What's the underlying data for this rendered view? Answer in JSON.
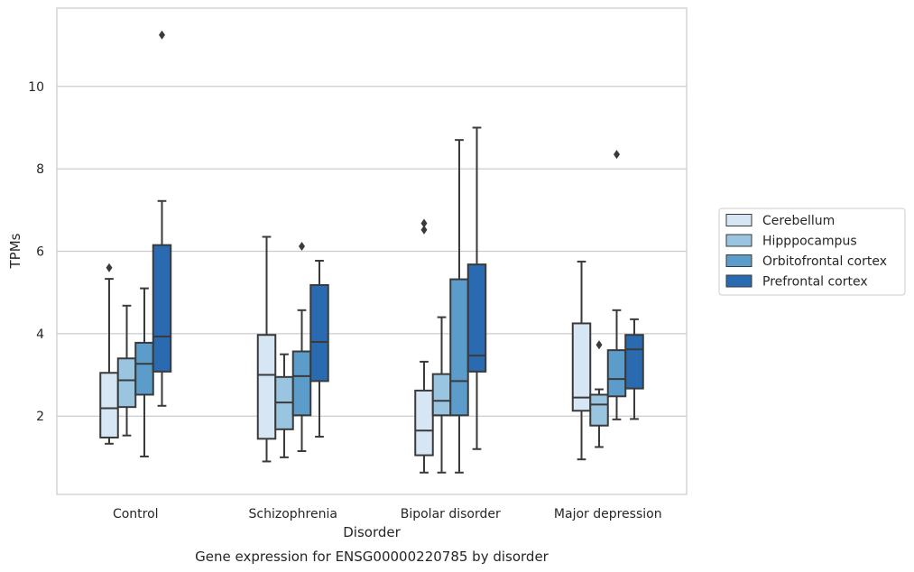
{
  "chart_data": {
    "type": "boxplot",
    "title": "Gene expression for ENSG00000220785 by disorder",
    "xlabel": "Disorder",
    "ylabel": "TPMs",
    "ylim": [
      0.1,
      11.9
    ],
    "yticks": [
      2,
      4,
      6,
      8,
      10
    ],
    "categories": [
      "Control",
      "Schizophrenia",
      "Bipolar disorder",
      "Major depression"
    ],
    "grid": "horizontal",
    "legend_position": "right",
    "series": [
      {
        "name": "Cerebellum",
        "color": "#d6e6f4",
        "boxes": [
          {
            "whisker_low": 1.33,
            "q1": 1.48,
            "median": 2.19,
            "q3": 3.05,
            "whisker_high": 5.33,
            "outliers": [
              5.6
            ]
          },
          {
            "whisker_low": 0.9,
            "q1": 1.45,
            "median": 3.0,
            "q3": 3.97,
            "whisker_high": 6.35,
            "outliers": []
          },
          {
            "whisker_low": 0.63,
            "q1": 1.05,
            "median": 1.65,
            "q3": 2.62,
            "whisker_high": 3.32,
            "outliers": [
              6.52,
              6.68
            ]
          },
          {
            "whisker_low": 0.95,
            "q1": 2.13,
            "median": 2.45,
            "q3": 4.25,
            "whisker_high": 5.75,
            "outliers": []
          }
        ]
      },
      {
        "name": "Hipppocampus",
        "color": "#9ac5e0",
        "boxes": [
          {
            "whisker_low": 1.53,
            "q1": 2.22,
            "median": 2.87,
            "q3": 3.4,
            "whisker_high": 4.68,
            "outliers": []
          },
          {
            "whisker_low": 1.0,
            "q1": 1.68,
            "median": 2.33,
            "q3": 2.95,
            "whisker_high": 3.5,
            "outliers": []
          },
          {
            "whisker_low": 0.63,
            "q1": 2.02,
            "median": 2.37,
            "q3": 3.02,
            "whisker_high": 4.4,
            "outliers": []
          },
          {
            "whisker_low": 1.25,
            "q1": 1.77,
            "median": 2.28,
            "q3": 2.52,
            "whisker_high": 2.65,
            "outliers": [
              3.73
            ]
          }
        ]
      },
      {
        "name": "Orbitofrontal cortex",
        "color": "#5b9ccb",
        "boxes": [
          {
            "whisker_low": 1.02,
            "q1": 2.52,
            "median": 3.27,
            "q3": 3.78,
            "whisker_high": 5.1,
            "outliers": []
          },
          {
            "whisker_low": 1.15,
            "q1": 2.02,
            "median": 2.97,
            "q3": 3.57,
            "whisker_high": 4.57,
            "outliers": [
              6.12
            ]
          },
          {
            "whisker_low": 0.63,
            "q1": 2.02,
            "median": 2.85,
            "q3": 5.32,
            "whisker_high": 8.7,
            "outliers": []
          },
          {
            "whisker_low": 1.92,
            "q1": 2.48,
            "median": 2.9,
            "q3": 3.6,
            "whisker_high": 4.57,
            "outliers": [
              8.35
            ]
          }
        ]
      },
      {
        "name": "Prefrontal cortex",
        "color": "#2a6ab0",
        "boxes": [
          {
            "whisker_low": 2.25,
            "q1": 3.08,
            "median": 3.93,
            "q3": 6.15,
            "whisker_high": 7.22,
            "outliers": [
              11.25
            ]
          },
          {
            "whisker_low": 1.5,
            "q1": 2.85,
            "median": 3.8,
            "q3": 5.18,
            "whisker_high": 5.77,
            "outliers": []
          },
          {
            "whisker_low": 1.2,
            "q1": 3.08,
            "median": 3.47,
            "q3": 5.68,
            "whisker_high": 9.0,
            "outliers": []
          },
          {
            "whisker_low": 1.93,
            "q1": 2.67,
            "median": 3.62,
            "q3": 3.97,
            "whisker_high": 4.35,
            "outliers": []
          }
        ]
      }
    ]
  }
}
